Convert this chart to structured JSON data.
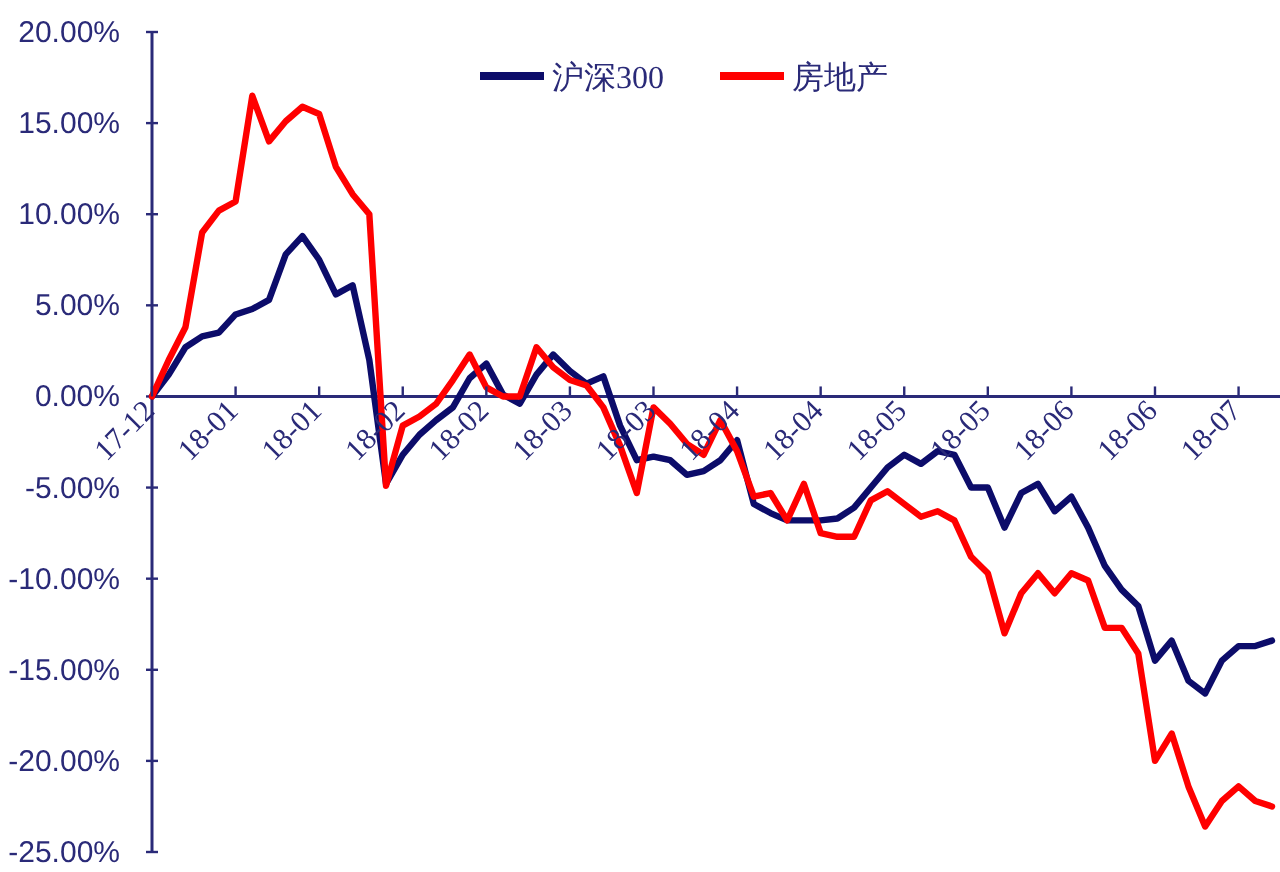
{
  "chart_data": {
    "type": "line",
    "categories": [
      "17-12",
      null,
      null,
      null,
      null,
      "18-01",
      null,
      null,
      null,
      null,
      "18-01",
      null,
      null,
      null,
      null,
      "18-02",
      null,
      null,
      null,
      null,
      "18-02",
      null,
      null,
      null,
      null,
      "18-03",
      null,
      null,
      null,
      null,
      "18-03",
      null,
      null,
      null,
      null,
      "18-04",
      null,
      null,
      null,
      null,
      "18-04",
      null,
      null,
      null,
      null,
      "18-05",
      null,
      null,
      null,
      null,
      "18-05",
      null,
      null,
      null,
      null,
      "18-06",
      null,
      null,
      null,
      null,
      "18-06",
      null,
      null,
      null,
      null,
      "18-07",
      null,
      null
    ],
    "series": [
      {
        "name": "沪深300",
        "color": "#0c0c6a",
        "values": [
          0,
          1.2,
          2.7,
          3.3,
          3.5,
          4.5,
          4.8,
          5.3,
          7.8,
          8.8,
          7.5,
          5.6,
          6.1,
          2.0,
          -4.8,
          -3.2,
          -2.1,
          -1.3,
          -0.6,
          1.0,
          1.8,
          0.1,
          -0.4,
          1.2,
          2.3,
          1.4,
          0.7,
          1.1,
          -1.6,
          -3.5,
          -3.3,
          -3.5,
          -4.3,
          -4.1,
          -3.5,
          -2.4,
          -5.9,
          -6.4,
          -6.8,
          -6.8,
          -6.8,
          -6.7,
          -6.1,
          -5.0,
          -3.9,
          -3.2,
          -3.7,
          -3.0,
          -3.2,
          -5.0,
          -5.0,
          -7.2,
          -5.3,
          -4.8,
          -6.3,
          -5.5,
          -7.2,
          -9.3,
          -10.6,
          -11.5,
          -14.5,
          -13.4,
          -15.6,
          -16.3,
          -14.5,
          -13.7,
          -13.7,
          -13.4
        ]
      },
      {
        "name": "房地产",
        "color": "#ff0000",
        "values": [
          0,
          2.0,
          3.8,
          9.0,
          10.2,
          10.7,
          16.5,
          14.0,
          15.1,
          15.9,
          15.5,
          12.6,
          11.1,
          10.0,
          -4.9,
          -1.6,
          -1.1,
          -0.4,
          0.9,
          2.3,
          0.5,
          0,
          0,
          2.7,
          1.6,
          0.9,
          0.6,
          -0.6,
          -2.7,
          -5.3,
          -0.6,
          -1.5,
          -2.6,
          -3.2,
          -1.3,
          -3.0,
          -5.5,
          -5.3,
          -6.8,
          -4.8,
          -7.5,
          -7.7,
          -7.7,
          -5.7,
          -5.2,
          -5.9,
          -6.6,
          -6.3,
          -6.8,
          -8.8,
          -9.7,
          -13.0,
          -10.8,
          -9.7,
          -10.8,
          -9.7,
          -10.1,
          -12.7,
          -12.7,
          -14.1,
          -20.0,
          -18.5,
          -21.4,
          -23.6,
          -22.2,
          -21.4,
          -22.2,
          -22.5
        ]
      }
    ],
    "ylim": [
      -25,
      20
    ],
    "yticks": [
      {
        "value": -25,
        "label": "-25.00%"
      },
      {
        "value": -20,
        "label": "-20.00%"
      },
      {
        "value": -15,
        "label": "-15.00%"
      },
      {
        "value": -10,
        "label": "-10.00%"
      },
      {
        "value": -5,
        "label": "-5.00%"
      },
      {
        "value": 0,
        "label": "0.00%"
      },
      {
        "value": 5,
        "label": "5.00%"
      },
      {
        "value": 10,
        "label": "10.00%"
      },
      {
        "value": 15,
        "label": "15.00%"
      },
      {
        "value": 20,
        "label": "20.00%"
      }
    ],
    "grid": false,
    "legend": "top",
    "marker": "none",
    "line_style": "solid"
  }
}
